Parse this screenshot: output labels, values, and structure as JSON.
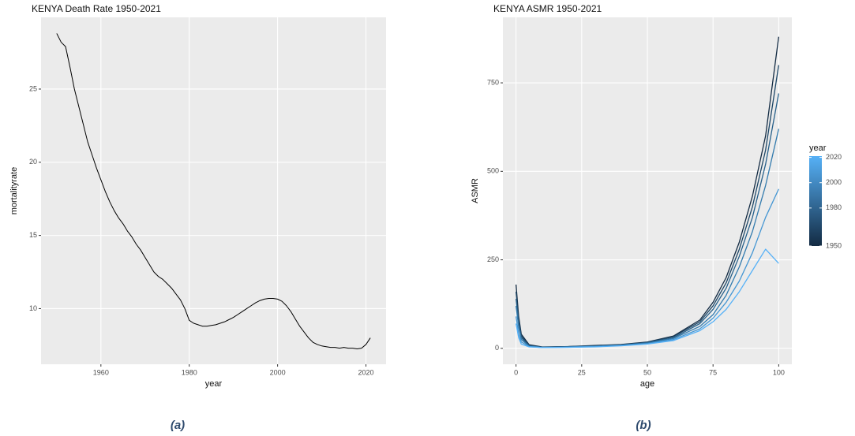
{
  "chart_data": [
    {
      "type": "line",
      "title": "KENYA Death Rate 1950-2021",
      "x_label": "year",
      "y_label": "mortalityrate",
      "caption": "(a)",
      "color": "#000000",
      "grid": true,
      "x": [
        1950,
        1951,
        1952,
        1953,
        1954,
        1955,
        1956,
        1957,
        1958,
        1959,
        1960,
        1961,
        1962,
        1963,
        1964,
        1965,
        1966,
        1967,
        1968,
        1969,
        1970,
        1971,
        1972,
        1973,
        1974,
        1975,
        1976,
        1977,
        1978,
        1979,
        1980,
        1981,
        1982,
        1983,
        1984,
        1985,
        1986,
        1987,
        1988,
        1989,
        1990,
        1991,
        1992,
        1993,
        1994,
        1995,
        1996,
        1997,
        1998,
        1999,
        2000,
        2001,
        2002,
        2003,
        2004,
        2005,
        2006,
        2007,
        2008,
        2009,
        2010,
        2011,
        2012,
        2013,
        2014,
        2015,
        2016,
        2017,
        2018,
        2019,
        2020,
        2021
      ],
      "values": [
        28.8,
        28.2,
        27.9,
        26.5,
        25.0,
        23.8,
        22.6,
        21.4,
        20.5,
        19.6,
        18.8,
        18.0,
        17.3,
        16.7,
        16.2,
        15.8,
        15.3,
        14.9,
        14.4,
        14.0,
        13.5,
        13.0,
        12.5,
        12.2,
        12.0,
        11.7,
        11.4,
        11.0,
        10.6,
        10.0,
        9.2,
        9.0,
        8.9,
        8.8,
        8.8,
        8.85,
        8.9,
        9.0,
        9.1,
        9.25,
        9.4,
        9.6,
        9.8,
        10.0,
        10.2,
        10.4,
        10.55,
        10.65,
        10.7,
        10.7,
        10.65,
        10.5,
        10.2,
        9.8,
        9.3,
        8.8,
        8.4,
        8.0,
        7.7,
        7.55,
        7.45,
        7.4,
        7.35,
        7.35,
        7.3,
        7.35,
        7.3,
        7.3,
        7.25,
        7.3,
        7.55,
        8.0
      ],
      "xlim": [
        1946.45,
        2024.55
      ],
      "xticks": [
        1960,
        1980,
        2000,
        2020
      ],
      "ylim": [
        6.2,
        29.9
      ],
      "yticks": [
        10,
        15,
        20,
        25
      ]
    },
    {
      "type": "line",
      "title": "KENYA ASMR 1950-2021",
      "x_label": "age",
      "y_label": "ASMR",
      "caption": "(b)",
      "grid": true,
      "x": [
        0,
        1,
        2,
        5,
        10,
        20,
        30,
        40,
        50,
        60,
        70,
        75,
        80,
        85,
        90,
        95,
        100
      ],
      "series": [
        {
          "color": "#132b43",
          "values": [
            180,
            90,
            40,
            10,
            4,
            5,
            8,
            11,
            18,
            35,
            80,
            130,
            200,
            300,
            430,
            600,
            880
          ]
        },
        {
          "color": "#1d4666",
          "values": [
            160,
            80,
            35,
            8,
            3,
            5,
            7,
            10,
            17,
            33,
            75,
            120,
            185,
            280,
            400,
            560,
            800
          ]
        },
        {
          "color": "#27608a",
          "values": [
            140,
            70,
            30,
            7,
            3,
            4,
            6,
            9,
            16,
            30,
            70,
            110,
            170,
            260,
            370,
            520,
            720
          ]
        },
        {
          "color": "#337bae",
          "values": [
            120,
            60,
            25,
            6,
            3,
            4,
            6,
            9,
            15,
            28,
            62,
            95,
            150,
            230,
            330,
            460,
            620
          ]
        },
        {
          "color": "#4496d3",
          "values": [
            90,
            40,
            18,
            5,
            2,
            3,
            5,
            8,
            13,
            25,
            55,
            85,
            130,
            190,
            270,
            370,
            450
          ]
        },
        {
          "color": "#56b1f7",
          "values": [
            70,
            30,
            12,
            4,
            2,
            3,
            4,
            7,
            12,
            22,
            50,
            75,
            110,
            160,
            220,
            280,
            240
          ]
        }
      ],
      "xlim": [
        -5,
        105
      ],
      "xticks": [
        0,
        25,
        50,
        75,
        100
      ],
      "ylim": [
        -45,
        935
      ],
      "yticks": [
        0,
        250,
        500,
        750
      ],
      "colorbar": {
        "title": "year",
        "range": [
          1950,
          2021
        ],
        "ticks": [
          1950,
          1980,
          2000,
          2020
        ],
        "colors": [
          "#132b43",
          "#56b1f7"
        ]
      }
    }
  ]
}
